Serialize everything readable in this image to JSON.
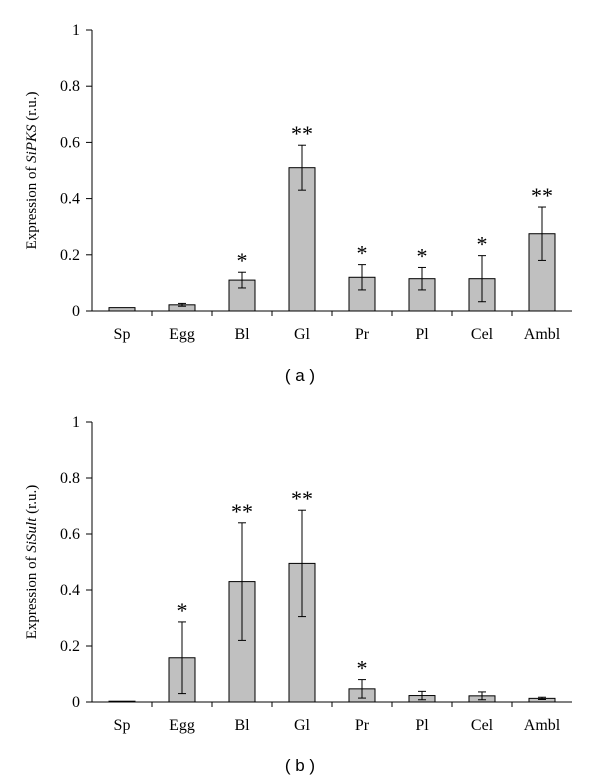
{
  "colors": {
    "bar_fill": "#c0c0c0",
    "bar_stroke": "#000000",
    "axis": "#000000"
  },
  "chart_data": [
    {
      "type": "bar",
      "panel_label": "( a )",
      "ylabel_prefix": "Expression of ",
      "ylabel_gene": "SiPKS",
      "ylabel_suffix": " (r.u.)",
      "categories": [
        "Sp",
        "Egg",
        "Bl",
        "Gl",
        "Pr",
        "Pl",
        "Cel",
        "Ambl"
      ],
      "values": [
        0.012,
        0.022,
        0.11,
        0.51,
        0.12,
        0.115,
        0.115,
        0.275
      ],
      "errors": [
        0.0,
        0.005,
        0.028,
        0.08,
        0.045,
        0.04,
        0.082,
        0.095
      ],
      "significance": [
        "",
        "",
        "*",
        "**",
        "*",
        "*",
        "*",
        "**"
      ],
      "ylim": [
        0,
        1
      ],
      "yticks": [
        "0",
        "0.2",
        "0.4",
        "0.6",
        "0.8",
        "1"
      ],
      "grid": false,
      "legend": false
    },
    {
      "type": "bar",
      "panel_label": "( b )",
      "ylabel_prefix": "Expression of ",
      "ylabel_gene": "SiSult",
      "ylabel_suffix": " (r.u.)",
      "categories": [
        "Sp",
        "Egg",
        "Bl",
        "Gl",
        "Pr",
        "Pl",
        "Cel",
        "Ambl"
      ],
      "values": [
        0.0,
        0.158,
        0.43,
        0.495,
        0.047,
        0.023,
        0.022,
        0.013
      ],
      "errors": [
        0.0,
        0.128,
        0.21,
        0.19,
        0.033,
        0.015,
        0.014,
        0.004
      ],
      "significance": [
        "",
        "*",
        "**",
        "**",
        "*",
        "",
        "",
        ""
      ],
      "ylim": [
        0,
        1
      ],
      "yticks": [
        "0",
        "0.2",
        "0.4",
        "0.6",
        "0.8",
        "1"
      ],
      "grid": false,
      "legend": false
    }
  ]
}
